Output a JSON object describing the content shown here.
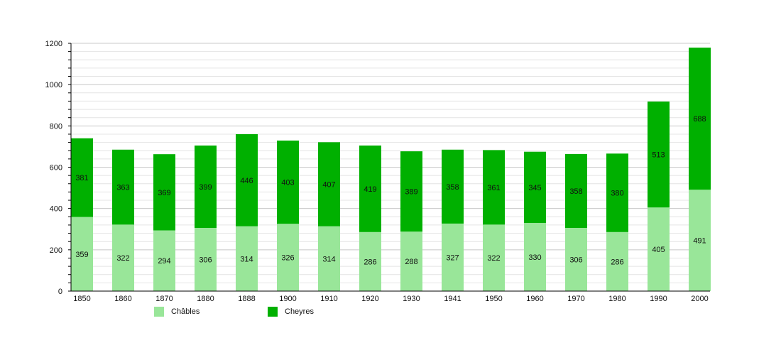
{
  "chart_data": {
    "type": "bar",
    "stacked": true,
    "categories": [
      "1850",
      "1860",
      "1870",
      "1880",
      "1888",
      "1900",
      "1910",
      "1920",
      "1930",
      "1941",
      "1950",
      "1960",
      "1970",
      "1980",
      "1990",
      "2000"
    ],
    "series": [
      {
        "name": "Châbles",
        "color": "#99e699",
        "values": [
          359,
          322,
          294,
          306,
          314,
          326,
          314,
          286,
          288,
          327,
          322,
          330,
          306,
          286,
          405,
          491
        ]
      },
      {
        "name": "Cheyres",
        "color": "#00b000",
        "values": [
          381,
          363,
          369,
          399,
          446,
          403,
          407,
          419,
          389,
          358,
          361,
          345,
          358,
          380,
          513,
          688
        ]
      }
    ],
    "ylim": [
      0,
      1200
    ],
    "yticks": [
      "0",
      "200",
      "400",
      "600",
      "800",
      "1000",
      "1200"
    ],
    "minor_tick_step": 40,
    "grid": true,
    "legend_placement": "bottom",
    "data_labels": true
  }
}
